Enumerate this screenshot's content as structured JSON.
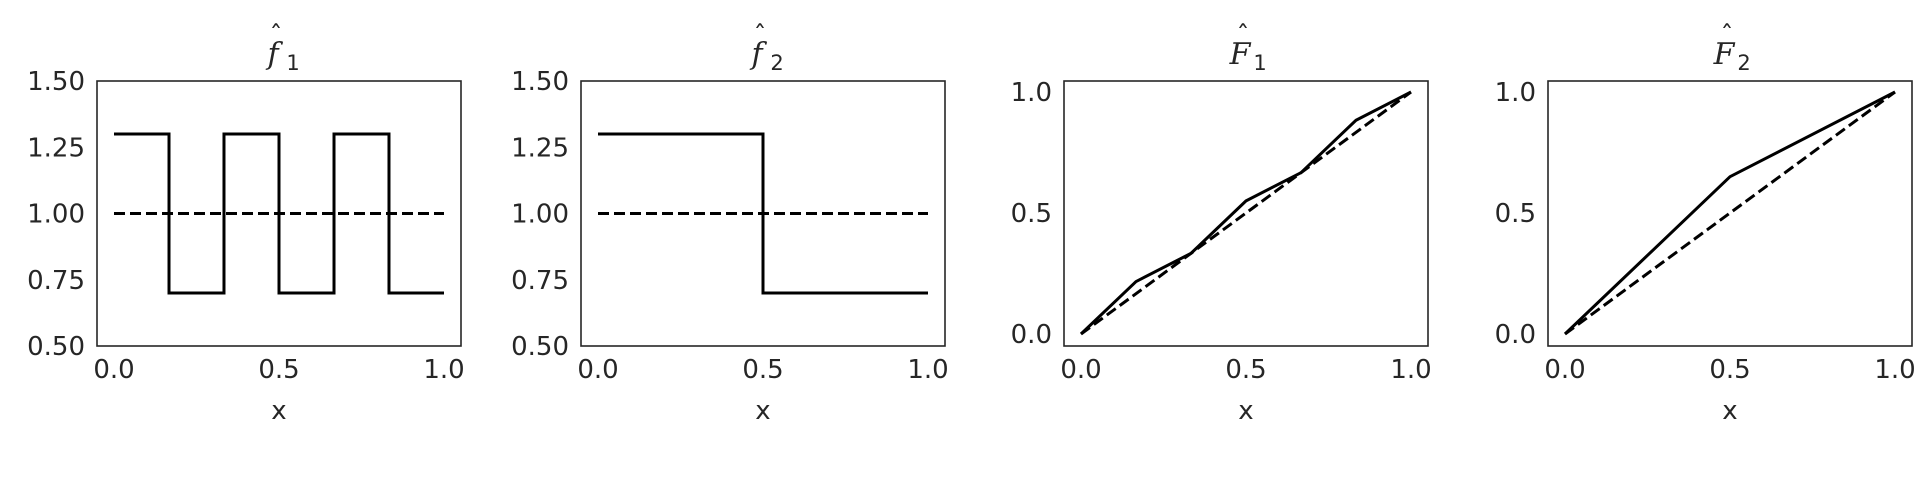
{
  "chart_data": [
    {
      "type": "line",
      "title": "f̂₁",
      "title_parts": {
        "letter": "f",
        "subscript": "1"
      },
      "xlabel": "x",
      "ylabel": "",
      "xlim": [
        0.0,
        1.0
      ],
      "ylim": [
        0.5,
        1.5
      ],
      "xticks": [
        "0.0",
        "0.5",
        "1.0"
      ],
      "yticks": [
        "0.50",
        "0.75",
        "1.00",
        "1.25",
        "1.50"
      ],
      "xtick_values": [
        0.0,
        0.5,
        1.0
      ],
      "ytick_values": [
        0.5,
        0.75,
        1.0,
        1.25,
        1.5
      ],
      "grid": false,
      "series": [
        {
          "style": "solid",
          "x": [
            0,
            0.1667,
            0.1667,
            0.3333,
            0.3333,
            0.5,
            0.5,
            0.6667,
            0.6667,
            0.8333,
            0.8333,
            1.0
          ],
          "y": [
            1.3,
            1.3,
            0.7,
            0.7,
            1.3,
            1.3,
            0.7,
            0.7,
            1.3,
            1.3,
            0.7,
            0.7
          ]
        },
        {
          "style": "dashed",
          "x": [
            0,
            1.0
          ],
          "y": [
            1.0,
            1.0
          ]
        }
      ]
    },
    {
      "type": "line",
      "title": "f̂₂",
      "title_parts": {
        "letter": "f",
        "subscript": "2"
      },
      "xlabel": "x",
      "ylabel": "",
      "xlim": [
        0.0,
        1.0
      ],
      "ylim": [
        0.5,
        1.5
      ],
      "xticks": [
        "0.0",
        "0.5",
        "1.0"
      ],
      "yticks": [
        "0.50",
        "0.75",
        "1.00",
        "1.25",
        "1.50"
      ],
      "xtick_values": [
        0.0,
        0.5,
        1.0
      ],
      "ytick_values": [
        0.5,
        0.75,
        1.0,
        1.25,
        1.5
      ],
      "grid": false,
      "series": [
        {
          "style": "solid",
          "x": [
            0,
            0.5,
            0.5,
            1.0
          ],
          "y": [
            1.3,
            1.3,
            0.7,
            0.7
          ]
        },
        {
          "style": "dashed",
          "x": [
            0,
            1.0
          ],
          "y": [
            1.0,
            1.0
          ]
        }
      ]
    },
    {
      "type": "line",
      "title": "F̂₁",
      "title_parts": {
        "letter": "F",
        "subscript": "1"
      },
      "xlabel": "x",
      "ylabel": "",
      "xlim": [
        0.0,
        1.0
      ],
      "ylim": [
        0.0,
        1.0
      ],
      "xticks": [
        "0.0",
        "0.5",
        "1.0"
      ],
      "yticks": [
        "0.0",
        "0.5",
        "1.0"
      ],
      "xtick_values": [
        0.0,
        0.5,
        1.0
      ],
      "ytick_values": [
        0.0,
        0.5,
        1.0
      ],
      "grid": false,
      "series": [
        {
          "style": "solid",
          "x": [
            0,
            0.1667,
            0.3333,
            0.5,
            0.6667,
            0.8333,
            1.0
          ],
          "y": [
            0,
            0.2167,
            0.3333,
            0.55,
            0.6667,
            0.8833,
            1.0
          ]
        },
        {
          "style": "dashed",
          "x": [
            0,
            1.0
          ],
          "y": [
            0,
            1.0
          ]
        }
      ]
    },
    {
      "type": "line",
      "title": "F̂₂",
      "title_parts": {
        "letter": "F",
        "subscript": "2"
      },
      "xlabel": "x",
      "ylabel": "",
      "xlim": [
        0.0,
        1.0
      ],
      "ylim": [
        0.0,
        1.0
      ],
      "xticks": [
        "0.0",
        "0.5",
        "1.0"
      ],
      "yticks": [
        "0.0",
        "0.5",
        "1.0"
      ],
      "xtick_values": [
        0.0,
        0.5,
        1.0
      ],
      "ytick_values": [
        0.0,
        0.5,
        1.0
      ],
      "grid": false,
      "series": [
        {
          "style": "solid",
          "x": [
            0,
            0.5,
            1.0
          ],
          "y": [
            0,
            0.65,
            1.0
          ]
        },
        {
          "style": "dashed",
          "x": [
            0,
            1.0
          ],
          "y": [
            0,
            1.0
          ]
        }
      ]
    }
  ]
}
